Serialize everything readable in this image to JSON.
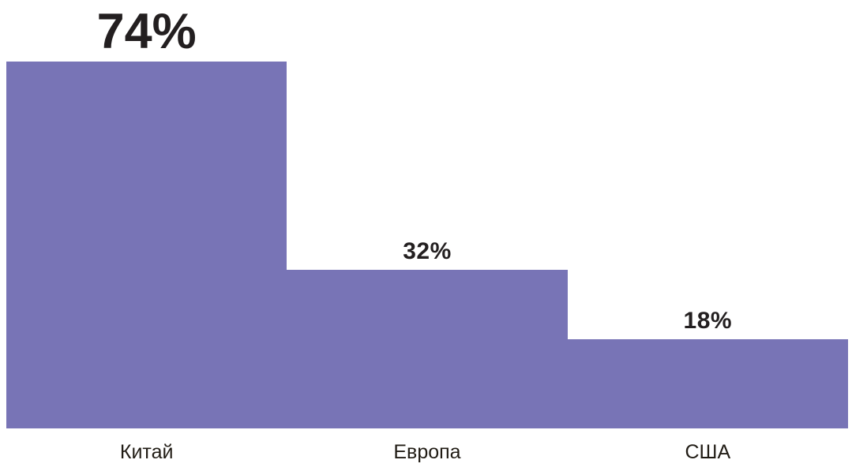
{
  "chart_data": {
    "type": "bar",
    "categories": [
      "Китай",
      "Европа",
      "США"
    ],
    "values": [
      74,
      32,
      18
    ],
    "value_labels": [
      "74%",
      "32%",
      "18%"
    ],
    "title": "",
    "xlabel": "",
    "ylabel": "",
    "ylim": [
      0,
      86.4
    ],
    "grid": false,
    "legend": false,
    "bar_color": "#7874B6",
    "value_label_color": "#231F20",
    "category_label_color": "#211C15",
    "background_color": "#FFFFFF"
  }
}
